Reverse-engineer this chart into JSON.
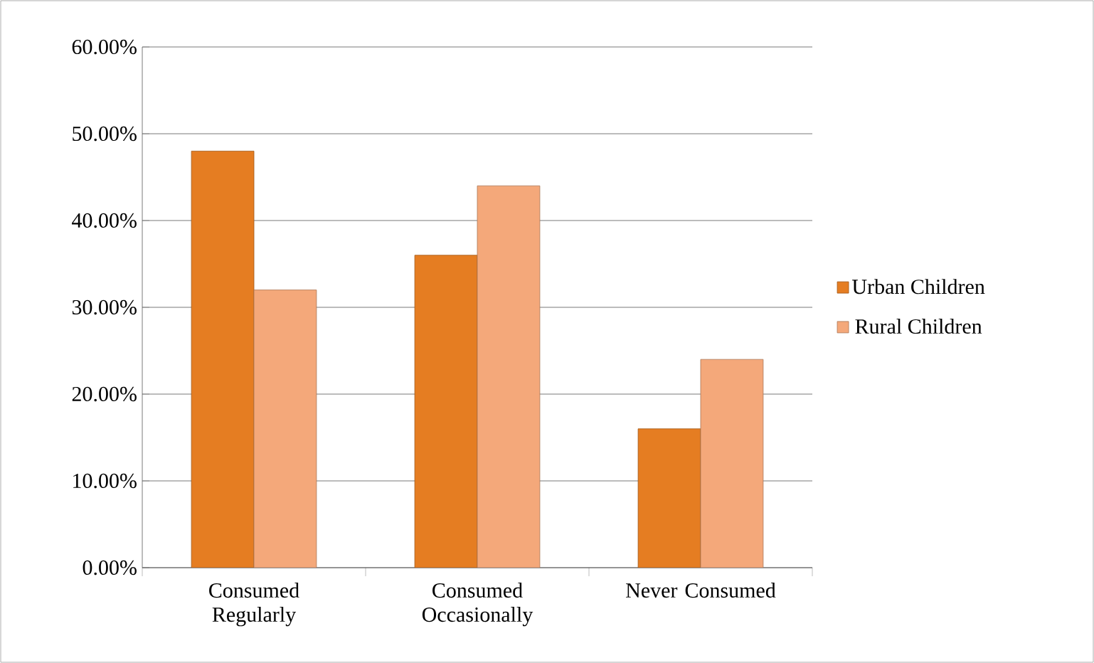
{
  "chart_data": {
    "type": "bar",
    "categories": [
      "Consumed Regularly",
      "Consumed Occasionally",
      "Never Consumed"
    ],
    "series": [
      {
        "name": "Urban Children",
        "color": "#e57d22",
        "values": [
          48,
          36,
          16
        ]
      },
      {
        "name": "Rural Children",
        "color": "#f4a87a",
        "values": [
          32,
          44,
          24
        ]
      }
    ],
    "ylim": [
      0,
      60
    ],
    "yticks": [
      {
        "value": 0,
        "label": "0.00%"
      },
      {
        "value": 10,
        "label": "10.00%"
      },
      {
        "value": 20,
        "label": "20.00%"
      },
      {
        "value": 30,
        "label": "30.00%"
      },
      {
        "value": 40,
        "label": "40.00%"
      },
      {
        "value": 50,
        "label": "50.00%"
      },
      {
        "value": 60,
        "label": "60.00%"
      }
    ],
    "grid": "y",
    "legend": "right"
  }
}
